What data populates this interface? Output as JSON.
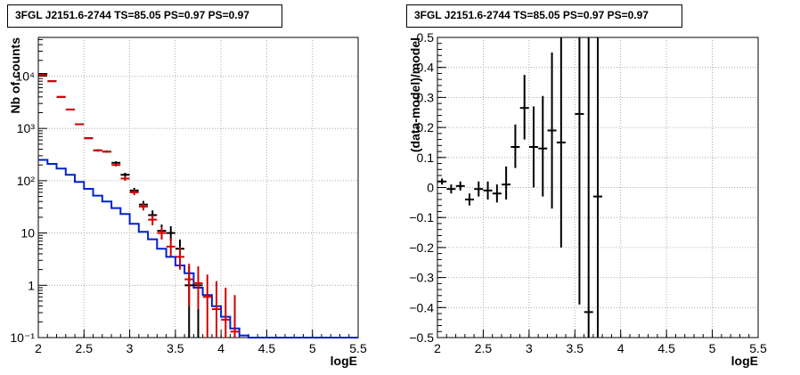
{
  "colors": {
    "data": "#000000",
    "model": "#d40000",
    "background": "#0022cc",
    "axis": "#000000",
    "grid": "#999999"
  },
  "chart_data": [
    {
      "type": "histogram",
      "title": "3FGL J2151.6-2744 TS=85.05 PS=0.97 PS=0.97",
      "xlabel": "logE",
      "ylabel": "Nb of counts",
      "xlim": [
        2,
        5.5
      ],
      "ylim": [
        0.1,
        55000
      ],
      "yscale": "log",
      "grid": true,
      "xticks": [
        2,
        2.5,
        3,
        3.5,
        4,
        4.5,
        5,
        5.5
      ],
      "xtick_labels": [
        "2",
        "2.5",
        "3",
        "3.5",
        "4",
        "4.5",
        "5",
        "5.5"
      ],
      "yticks": [
        0.1,
        1,
        10,
        100,
        1000,
        10000
      ],
      "ytick_labels": [
        "10⁻¹",
        "1",
        "10",
        "10²",
        "10³",
        "10⁴"
      ],
      "series": [
        {
          "role": "data",
          "x": [
            2.05,
            2.15,
            2.25,
            2.35,
            2.45,
            2.55,
            2.65,
            2.75,
            2.85,
            2.95,
            3.05,
            3.15,
            3.25,
            3.35,
            3.45,
            3.55,
            3.65,
            3.75
          ],
          "y": [
            11000,
            8000,
            4000,
            2300,
            1200,
            650,
            380,
            360,
            220,
            130,
            65,
            35,
            22,
            11,
            10,
            5,
            1,
            1
          ],
          "ylow": [
            10900,
            7900,
            3940,
            2250,
            1170,
            630,
            360,
            345,
            205,
            118,
            57,
            29,
            17,
            7.8,
            7,
            3,
            0.1,
            0.1
          ],
          "yhigh": [
            11100,
            8100,
            4060,
            2350,
            1230,
            670,
            400,
            380,
            235,
            142,
            73,
            41,
            27,
            14.5,
            13.5,
            7.5,
            2.3,
            2.3
          ]
        },
        {
          "role": "model",
          "x": [
            2.05,
            2.15,
            2.25,
            2.35,
            2.45,
            2.55,
            2.65,
            2.75,
            2.85,
            2.95,
            3.05,
            3.15,
            3.25,
            3.35,
            3.45,
            3.55,
            3.65,
            3.75,
            3.85,
            3.95,
            4.05,
            4.15
          ],
          "y": [
            10500,
            8000,
            4000,
            2300,
            1200,
            650,
            380,
            360,
            200,
            110,
            60,
            32,
            18,
            10,
            5.5,
            3.5,
            1.3,
            1.1,
            0.6,
            0.35,
            0.22,
            0.13
          ],
          "ylow": [
            10400,
            7920,
            3950,
            2260,
            1170,
            630,
            365,
            345,
            187,
            100,
            53,
            27,
            14,
            7.5,
            3.6,
            2,
            0.4,
            0.35,
            0.1,
            0.1,
            0.1,
            0.1
          ],
          "yhigh": [
            10600,
            8080,
            4050,
            2340,
            1230,
            670,
            395,
            375,
            213,
            120,
            67,
            37,
            22,
            13,
            8,
            5.5,
            2.6,
            2.3,
            1.6,
            1.2,
            0.9,
            0.65
          ]
        },
        {
          "role": "background",
          "edges": [
            2.0,
            2.1,
            2.2,
            2.3,
            2.4,
            2.5,
            2.6,
            2.7,
            2.8,
            2.9,
            3.0,
            3.1,
            3.2,
            3.3,
            3.4,
            3.5,
            3.6,
            3.7,
            3.8,
            3.9,
            4.0,
            4.1,
            4.2,
            4.3,
            5.5
          ],
          "values": [
            250,
            210,
            170,
            130,
            95,
            70,
            52,
            40,
            30,
            23,
            15,
            10.5,
            7.6,
            5,
            3.5,
            2.4,
            1.7,
            0.9,
            0.65,
            0.4,
            0.25,
            0.15,
            0.11,
            0.1
          ]
        }
      ]
    },
    {
      "type": "scatter",
      "title": "3FGL J2151.6-2744 TS=85.05 PS=0.97 PS=0.97",
      "xlabel": "logE",
      "ylabel": "(data-model)/model",
      "xlim": [
        2,
        5.5
      ],
      "ylim": [
        -0.5,
        0.5
      ],
      "grid": true,
      "xticks": [
        2,
        2.5,
        3,
        3.5,
        4,
        4.5,
        5,
        5.5
      ],
      "xtick_labels": [
        "2",
        "2.5",
        "3",
        "3.5",
        "4",
        "4.5",
        "5",
        "5.5"
      ],
      "yticks": [
        -0.5,
        -0.4,
        -0.3,
        -0.2,
        -0.1,
        0,
        0.1,
        0.2,
        0.3,
        0.4,
        0.5
      ],
      "ytick_labels": [
        "−0.5",
        "−0.4",
        "−0.3",
        "−0.2",
        "−0.1",
        "0",
        "0.1",
        "0.2",
        "0.3",
        "0.4",
        "0.5"
      ],
      "series": [
        {
          "role": "residual",
          "x": [
            2.05,
            2.15,
            2.25,
            2.35,
            2.45,
            2.55,
            2.65,
            2.75,
            2.85,
            2.95,
            3.05,
            3.15,
            3.25,
            3.35,
            3.55,
            3.65,
            3.75
          ],
          "y": [
            0.02,
            -0.005,
            0.005,
            -0.04,
            -0.005,
            -0.01,
            -0.02,
            0.01,
            0.135,
            0.265,
            0.135,
            0.13,
            0.19,
            0.15,
            0.245,
            -0.415,
            -0.03
          ],
          "ylow": [
            0.01,
            -0.02,
            -0.01,
            -0.06,
            -0.03,
            -0.04,
            -0.05,
            -0.04,
            0.065,
            0.16,
            0.0,
            -0.03,
            -0.07,
            -0.2,
            -0.39,
            -0.5,
            -0.5
          ],
          "yhigh": [
            0.03,
            0.01,
            0.02,
            -0.02,
            0.02,
            0.02,
            0.01,
            0.07,
            0.21,
            0.375,
            0.27,
            0.305,
            0.45,
            0.5,
            0.5,
            0.5,
            0.5
          ]
        }
      ]
    }
  ]
}
